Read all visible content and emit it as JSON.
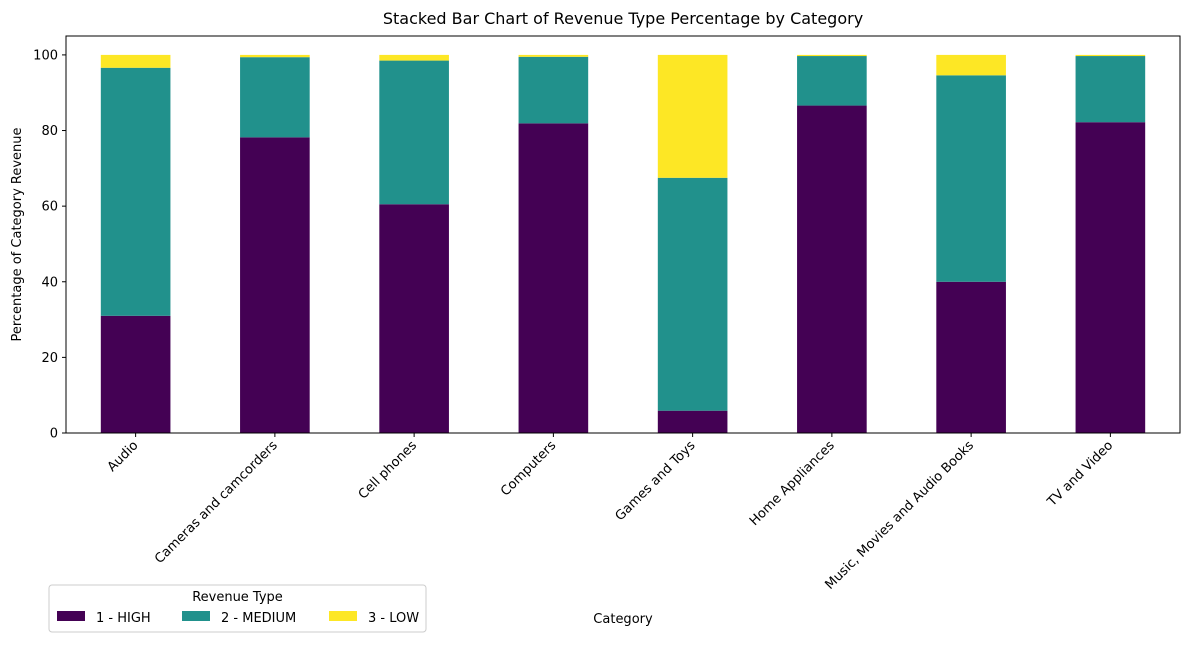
{
  "chart_data": {
    "type": "bar",
    "stacked": true,
    "title": "Stacked Bar Chart of Revenue Type Percentage by Category",
    "xlabel": "Category",
    "ylabel": "Percentage of Category Revenue",
    "ylim": [
      0,
      105
    ],
    "yticks": [
      0,
      20,
      40,
      60,
      80,
      100
    ],
    "grid": false,
    "legend": {
      "title": "Revenue Type",
      "placement": "bottom-left",
      "columns": 3
    },
    "categories": [
      "Audio",
      "Cameras and camcorders",
      "Cell phones",
      "Computers",
      "Games and Toys",
      "Home Appliances",
      "Music, Movies and Audio Books",
      "TV and Video"
    ],
    "series": [
      {
        "name": "1 - HIGH",
        "color": "#440154",
        "values": [
          31.0,
          78.2,
          60.5,
          81.9,
          5.9,
          86.6,
          40.0,
          82.2
        ]
      },
      {
        "name": "2 - MEDIUM",
        "color": "#21918c",
        "values": [
          65.6,
          21.2,
          38.0,
          17.6,
          61.6,
          13.1,
          54.6,
          17.5
        ]
      },
      {
        "name": "3 - LOW",
        "color": "#fde725",
        "values": [
          3.4,
          0.6,
          1.5,
          0.5,
          32.5,
          0.3,
          5.4,
          0.3
        ]
      }
    ]
  }
}
